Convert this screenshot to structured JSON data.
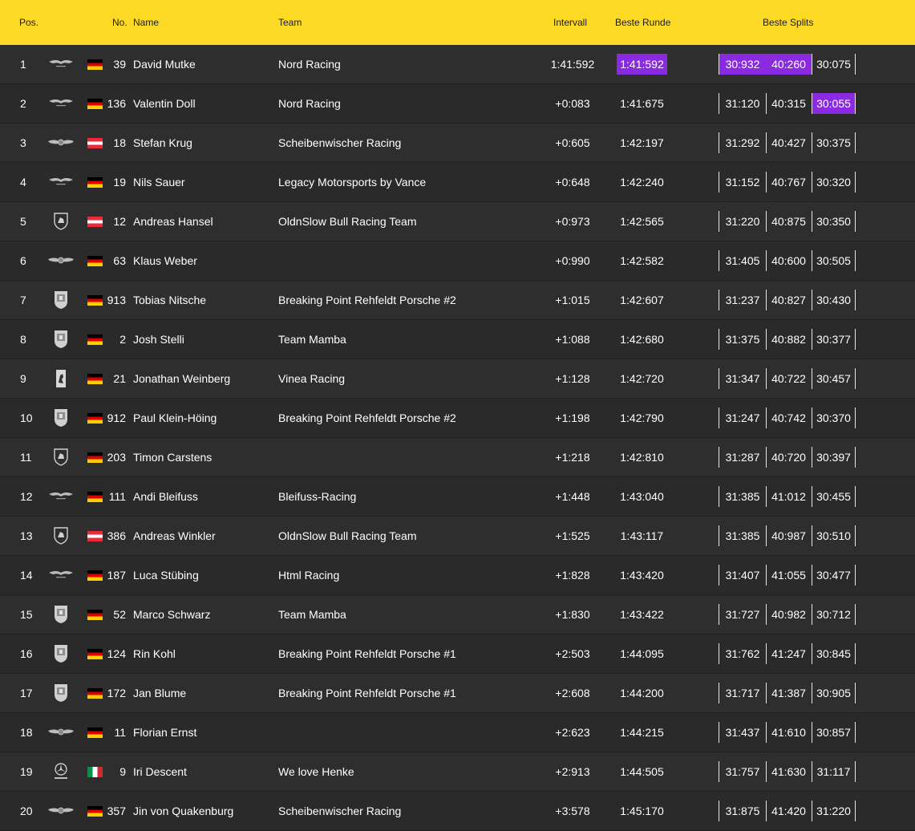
{
  "header": {
    "pos": "Pos.",
    "no": "No.",
    "name": "Name",
    "team": "Team",
    "interval": "Intervall",
    "best_lap": "Beste Runde",
    "best_splits": "Beste Splits"
  },
  "colors": {
    "header_bg": "#fcd924",
    "row_bg": "#2e2e2e",
    "highlight": "#8a2be2"
  },
  "rows": [
    {
      "pos": "1",
      "make": "aston-martin",
      "flag": "de",
      "no": "39",
      "name": "David Mutke",
      "team": "Nord Racing",
      "interval": "1:41:592",
      "best": "1:41:592",
      "best_purple": true,
      "splits": [
        "30:932",
        "40:260",
        "30:075"
      ],
      "split_purple": [
        true,
        true,
        false
      ]
    },
    {
      "pos": "2",
      "make": "aston-martin",
      "flag": "de",
      "no": "136",
      "name": "Valentin Doll",
      "team": "Nord Racing",
      "interval": "+0:083",
      "best": "1:41:675",
      "best_purple": false,
      "splits": [
        "31:120",
        "40:315",
        "30:055"
      ],
      "split_purple": [
        false,
        false,
        true
      ]
    },
    {
      "pos": "3",
      "make": "bentley",
      "flag": "at",
      "no": "18",
      "name": "Stefan Krug",
      "team": "Scheibenwischer Racing",
      "interval": "+0:605",
      "best": "1:42:197",
      "best_purple": false,
      "splits": [
        "31:292",
        "40:427",
        "30:375"
      ],
      "split_purple": [
        false,
        false,
        false
      ]
    },
    {
      "pos": "4",
      "make": "aston-martin",
      "flag": "de",
      "no": "19",
      "name": "Nils Sauer",
      "team": "Legacy Motorsports by Vance",
      "interval": "+0:648",
      "best": "1:42:240",
      "best_purple": false,
      "splits": [
        "31:152",
        "40:767",
        "30:320"
      ],
      "split_purple": [
        false,
        false,
        false
      ]
    },
    {
      "pos": "5",
      "make": "lamborghini",
      "flag": "at",
      "no": "12",
      "name": "Andreas Hansel",
      "team": "OldnSlow Bull Racing Team",
      "interval": "+0:973",
      "best": "1:42:565",
      "best_purple": false,
      "splits": [
        "31:220",
        "40:875",
        "30:350"
      ],
      "split_purple": [
        false,
        false,
        false
      ]
    },
    {
      "pos": "6",
      "make": "bentley",
      "flag": "de",
      "no": "63",
      "name": "Klaus Weber",
      "team": "",
      "interval": "+0:990",
      "best": "1:42:582",
      "best_purple": false,
      "splits": [
        "31:405",
        "40:600",
        "30:505"
      ],
      "split_purple": [
        false,
        false,
        false
      ]
    },
    {
      "pos": "7",
      "make": "porsche",
      "flag": "de",
      "no": "913",
      "name": "Tobias Nitsche",
      "team": "Breaking Point Rehfeldt Porsche #2",
      "interval": "+1:015",
      "best": "1:42:607",
      "best_purple": false,
      "splits": [
        "31:237",
        "40:827",
        "30:430"
      ],
      "split_purple": [
        false,
        false,
        false
      ]
    },
    {
      "pos": "8",
      "make": "porsche",
      "flag": "de",
      "no": "2",
      "name": "Josh Stelli",
      "team": "Team Mamba",
      "interval": "+1:088",
      "best": "1:42:680",
      "best_purple": false,
      "splits": [
        "31:375",
        "40:882",
        "30:377"
      ],
      "split_purple": [
        false,
        false,
        false
      ]
    },
    {
      "pos": "9",
      "make": "ferrari",
      "flag": "de",
      "no": "21",
      "name": "Jonathan Weinberg",
      "team": "Vinea Racing",
      "interval": "+1:128",
      "best": "1:42:720",
      "best_purple": false,
      "splits": [
        "31:347",
        "40:722",
        "30:457"
      ],
      "split_purple": [
        false,
        false,
        false
      ]
    },
    {
      "pos": "10",
      "make": "porsche",
      "flag": "de",
      "no": "912",
      "name": "Paul Klein-Höing",
      "team": "Breaking Point Rehfeldt Porsche #2",
      "interval": "+1:198",
      "best": "1:42:790",
      "best_purple": false,
      "splits": [
        "31:247",
        "40:742",
        "30:370"
      ],
      "split_purple": [
        false,
        false,
        false
      ]
    },
    {
      "pos": "11",
      "make": "lamborghini",
      "flag": "de",
      "no": "203",
      "name": "Timon Carstens",
      "team": "",
      "interval": "+1:218",
      "best": "1:42:810",
      "best_purple": false,
      "splits": [
        "31:287",
        "40:720",
        "30:397"
      ],
      "split_purple": [
        false,
        false,
        false
      ]
    },
    {
      "pos": "12",
      "make": "aston-martin",
      "flag": "de",
      "no": "111",
      "name": "Andi Bleifuss",
      "team": "Bleifuss-Racing",
      "interval": "+1:448",
      "best": "1:43:040",
      "best_purple": false,
      "splits": [
        "31:385",
        "41:012",
        "30:455"
      ],
      "split_purple": [
        false,
        false,
        false
      ]
    },
    {
      "pos": "13",
      "make": "lamborghini",
      "flag": "at",
      "no": "386",
      "name": "Andreas Winkler",
      "team": "OldnSlow Bull Racing Team",
      "interval": "+1:525",
      "best": "1:43:117",
      "best_purple": false,
      "splits": [
        "31:385",
        "40:987",
        "30:510"
      ],
      "split_purple": [
        false,
        false,
        false
      ]
    },
    {
      "pos": "14",
      "make": "aston-martin",
      "flag": "de",
      "no": "187",
      "name": "Luca Stübing",
      "team": "Html Racing",
      "interval": "+1:828",
      "best": "1:43:420",
      "best_purple": false,
      "splits": [
        "31:407",
        "41:055",
        "30:477"
      ],
      "split_purple": [
        false,
        false,
        false
      ]
    },
    {
      "pos": "15",
      "make": "porsche",
      "flag": "de",
      "no": "52",
      "name": "Marco Schwarz",
      "team": "Team Mamba",
      "interval": "+1:830",
      "best": "1:43:422",
      "best_purple": false,
      "splits": [
        "31:727",
        "40:982",
        "30:712"
      ],
      "split_purple": [
        false,
        false,
        false
      ]
    },
    {
      "pos": "16",
      "make": "porsche",
      "flag": "de",
      "no": "124",
      "name": "Rin Kohl",
      "team": "Breaking Point Rehfeldt Porsche #1",
      "interval": "+2:503",
      "best": "1:44:095",
      "best_purple": false,
      "splits": [
        "31:762",
        "41:247",
        "30:845"
      ],
      "split_purple": [
        false,
        false,
        false
      ]
    },
    {
      "pos": "17",
      "make": "porsche",
      "flag": "de",
      "no": "172",
      "name": "Jan Blume",
      "team": "Breaking Point Rehfeldt Porsche #1",
      "interval": "+2:608",
      "best": "1:44:200",
      "best_purple": false,
      "splits": [
        "31:717",
        "41:387",
        "30:905"
      ],
      "split_purple": [
        false,
        false,
        false
      ]
    },
    {
      "pos": "18",
      "make": "bentley",
      "flag": "de",
      "no": "11",
      "name": "Florian Ernst",
      "team": "",
      "interval": "+2:623",
      "best": "1:44:215",
      "best_purple": false,
      "splits": [
        "31:437",
        "41:610",
        "30:857"
      ],
      "split_purple": [
        false,
        false,
        false
      ]
    },
    {
      "pos": "19",
      "make": "mercedes-amg",
      "flag": "it",
      "no": "9",
      "name": "Iri Descent",
      "team": "We love Henke",
      "interval": "+2:913",
      "best": "1:44:505",
      "best_purple": false,
      "splits": [
        "31:757",
        "41:630",
        "31:117"
      ],
      "split_purple": [
        false,
        false,
        false
      ]
    },
    {
      "pos": "20",
      "make": "bentley",
      "flag": "de",
      "no": "357",
      "name": "Jin von Quakenburg",
      "team": "Scheibenwischer Racing",
      "interval": "+3:578",
      "best": "1:45:170",
      "best_purple": false,
      "splits": [
        "31:875",
        "41:420",
        "31:220"
      ],
      "split_purple": [
        false,
        false,
        false
      ]
    }
  ]
}
